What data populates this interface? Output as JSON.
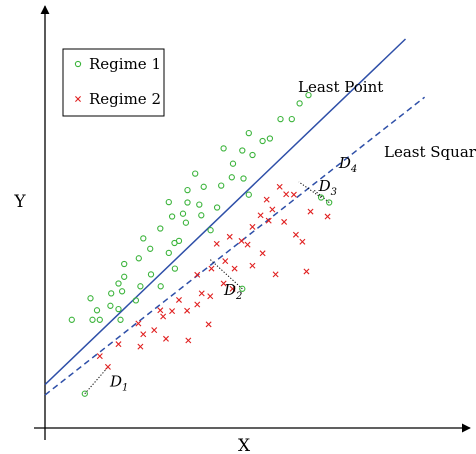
{
  "chart_data": {
    "type": "scatter",
    "axis_ticks": "none",
    "xlabel": "X",
    "ylabel": "Y",
    "legend": {
      "placement": "top-left",
      "entries": [
        "Regime 1",
        "Regime 2"
      ]
    },
    "xlim": [
      0,
      100
    ],
    "ylim": [
      0,
      100
    ],
    "series": [
      {
        "name": "Regime 1",
        "marker": "circle",
        "color": "#3cb43c",
        "points": [
          [
            6.6,
            26.2
          ],
          [
            11.7,
            26.2
          ],
          [
            13.5,
            26.2
          ],
          [
            12.8,
            28.5
          ],
          [
            11.2,
            31.4
          ],
          [
            16.1,
            29.6
          ],
          [
            16.3,
            32.6
          ],
          [
            18.1,
            28.8
          ],
          [
            18.1,
            35.0
          ],
          [
            19.5,
            36.6
          ],
          [
            19.5,
            39.7
          ],
          [
            19.0,
            33.1
          ],
          [
            18.6,
            26.2
          ],
          [
            22.4,
            30.9
          ],
          [
            23.5,
            34.3
          ],
          [
            23.1,
            41.1
          ],
          [
            24.2,
            45.9
          ],
          [
            26.1,
            37.2
          ],
          [
            25.9,
            43.4
          ],
          [
            28.5,
            34.3
          ],
          [
            28.4,
            48.3
          ],
          [
            30.5,
            42.4
          ],
          [
            32.0,
            38.6
          ],
          [
            31.9,
            44.8
          ],
          [
            31.3,
            51.2
          ],
          [
            33.0,
            45.3
          ],
          [
            30.5,
            54.7
          ],
          [
            34.0,
            51.9
          ],
          [
            35.1,
            57.6
          ],
          [
            34.7,
            49.7
          ],
          [
            35.1,
            54.6
          ],
          [
            38.0,
            54.1
          ],
          [
            37.0,
            61.6
          ],
          [
            38.5,
            51.5
          ],
          [
            39.1,
            58.4
          ],
          [
            40.8,
            47.9
          ],
          [
            42.4,
            53.4
          ],
          [
            43.4,
            58.7
          ],
          [
            44.0,
            67.7
          ],
          [
            46.0,
            60.7
          ],
          [
            46.3,
            64.0
          ],
          [
            48.6,
            67.2
          ],
          [
            48.9,
            60.4
          ],
          [
            50.2,
            71.4
          ],
          [
            51.1,
            66.1
          ],
          [
            53.6,
            69.5
          ],
          [
            55.4,
            70.1
          ],
          [
            58.0,
            74.8
          ],
          [
            60.8,
            74.8
          ],
          [
            62.7,
            78.6
          ],
          [
            64.9,
            80.6
          ],
          [
            50.2,
            56.5
          ],
          [
            9.8,
            8.3
          ],
          [
            48.6,
            33.7
          ],
          [
            68.0,
            55.8
          ],
          [
            70.0,
            54.6
          ]
        ]
      },
      {
        "name": "Regime 2",
        "marker": "x",
        "color": "#e02020",
        "points": [
          [
            13.5,
            17.4
          ],
          [
            15.5,
            14.8
          ],
          [
            18.1,
            20.3
          ],
          [
            23.0,
            25.3
          ],
          [
            23.5,
            19.7
          ],
          [
            24.2,
            22.7
          ],
          [
            26.9,
            23.7
          ],
          [
            28.4,
            28.5
          ],
          [
            29.1,
            27.0
          ],
          [
            29.8,
            21.6
          ],
          [
            31.3,
            28.3
          ],
          [
            33.0,
            31.0
          ],
          [
            35.0,
            28.4
          ],
          [
            37.5,
            29.9
          ],
          [
            35.3,
            21.2
          ],
          [
            37.5,
            37.1
          ],
          [
            38.6,
            32.6
          ],
          [
            40.7,
            31.9
          ],
          [
            41.0,
            38.6
          ],
          [
            40.3,
            25.1
          ],
          [
            42.3,
            44.6
          ],
          [
            44.0,
            35.0
          ],
          [
            44.4,
            40.4
          ],
          [
            45.5,
            46.3
          ],
          [
            46.2,
            33.7
          ],
          [
            46.7,
            38.6
          ],
          [
            48.4,
            45.3
          ],
          [
            49.9,
            44.4
          ],
          [
            51.1,
            39.3
          ],
          [
            51.1,
            48.7
          ],
          [
            53.1,
            51.5
          ],
          [
            53.6,
            42.3
          ],
          [
            54.6,
            55.3
          ],
          [
            55.1,
            50.2
          ],
          [
            56.0,
            52.9
          ],
          [
            56.8,
            37.2
          ],
          [
            57.8,
            58.4
          ],
          [
            58.9,
            49.9
          ],
          [
            61.3,
            56.5
          ],
          [
            61.8,
            46.8
          ],
          [
            63.4,
            45.1
          ],
          [
            65.4,
            52.4
          ],
          [
            69.6,
            51.2
          ],
          [
            64.4,
            37.9
          ],
          [
            59.4,
            56.6
          ]
        ]
      }
    ],
    "lines": [
      {
        "name": "Least Point",
        "style": "solid",
        "color": "#2e4fa8",
        "from": [
          0,
          10.5
        ],
        "to": [
          88.8,
          94.2
        ]
      },
      {
        "name": "Least Square",
        "style": "dashed",
        "color": "#2e4fa8",
        "from": [
          0,
          8.0
        ],
        "to": [
          93.5,
          80.1
        ]
      }
    ],
    "annotations": [
      {
        "label": "D",
        "sub": "1",
        "x": 16.0,
        "y": 10.0
      },
      {
        "label": "D",
        "sub": "2",
        "x": 44.1,
        "y": 32.2
      },
      {
        "label": "D",
        "sub": "3",
        "x": 67.4,
        "y": 57.4
      },
      {
        "label": "D",
        "sub": "4",
        "x": 72.4,
        "y": 63.0
      }
    ],
    "distance_links": [
      {
        "name": "D1",
        "from": [
          9.8,
          8.3
        ],
        "to": [
          15.3,
          14.5
        ]
      },
      {
        "name": "D2",
        "from": [
          48.6,
          33.7
        ],
        "to": [
          40.7,
          40.8
        ]
      },
      {
        "name": "D3",
        "from": [
          68.0,
          55.8
        ],
        "to": [
          62.5,
          59.6
        ]
      },
      {
        "name": "D4",
        "from": [
          70.0,
          54.6
        ],
        "to": [
          66.0,
          57.8
        ]
      }
    ]
  }
}
